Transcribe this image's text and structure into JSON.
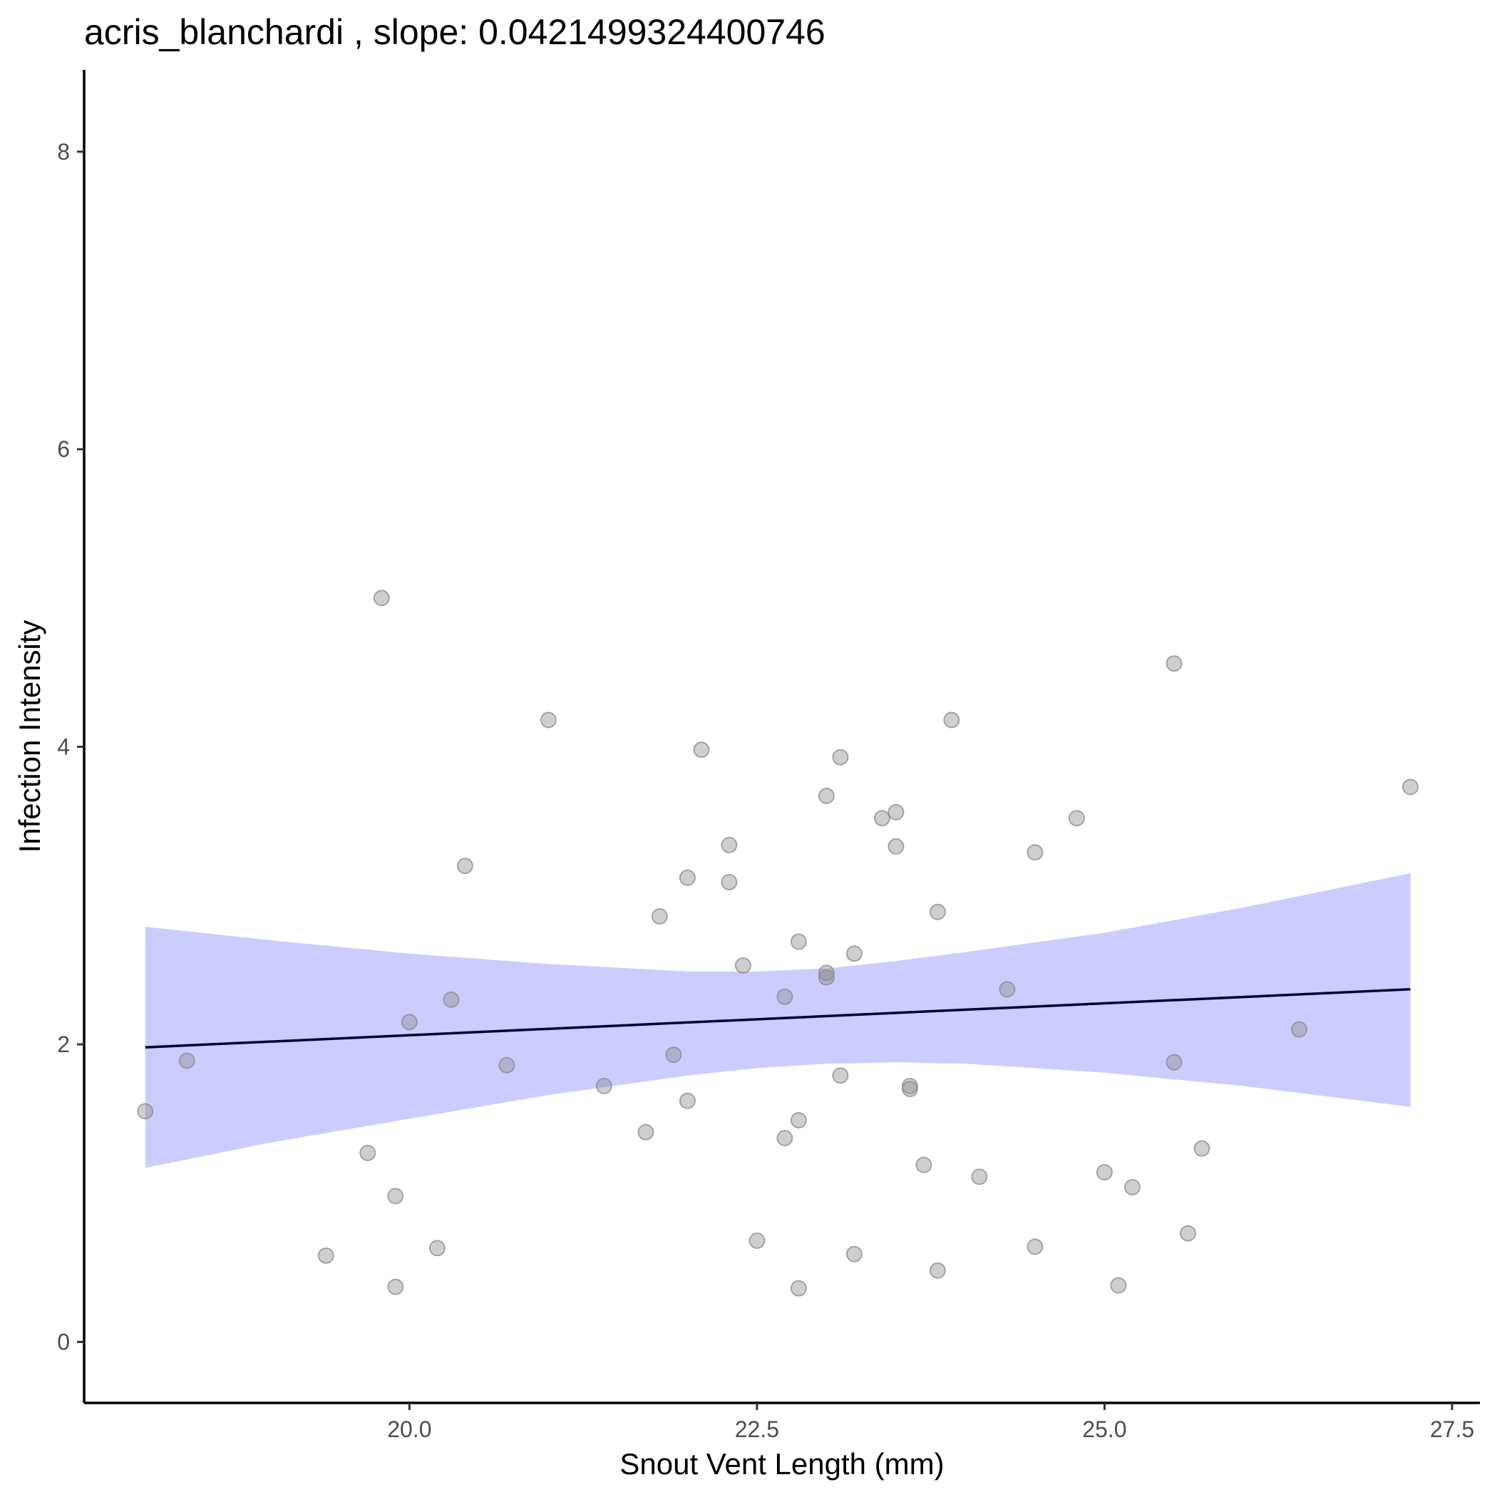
{
  "chart_data": {
    "type": "scatter",
    "title": "acris_blanchardi , slope: 0.0421499324400746",
    "xlabel": "Snout Vent Length (mm)",
    "ylabel": "Infection Intensity",
    "xlim": [
      17.66,
      27.7
    ],
    "ylim": [
      -0.41,
      8.55
    ],
    "xticks": [
      20.0,
      22.5,
      25.0,
      27.5
    ],
    "xtick_labels": [
      "20.0",
      "22.5",
      "25.0",
      "27.5"
    ],
    "yticks": [
      0,
      2,
      4,
      6,
      8
    ],
    "ytick_labels": [
      "0",
      "2",
      "4",
      "6",
      "8"
    ],
    "grid": false,
    "legend": "none",
    "colors": {
      "points": "#8c8c8c",
      "band": "#9999ff",
      "line": "#000033",
      "axis": "#000000",
      "tick_text": "#4d4d4d"
    },
    "points": [
      {
        "x": 18.1,
        "y": 1.55
      },
      {
        "x": 18.4,
        "y": 1.89
      },
      {
        "x": 19.4,
        "y": 0.58
      },
      {
        "x": 19.7,
        "y": 1.27
      },
      {
        "x": 19.8,
        "y": 5.0
      },
      {
        "x": 19.9,
        "y": 0.98
      },
      {
        "x": 19.9,
        "y": 0.37
      },
      {
        "x": 20.0,
        "y": 2.15
      },
      {
        "x": 20.2,
        "y": 0.63
      },
      {
        "x": 20.3,
        "y": 2.3
      },
      {
        "x": 20.4,
        "y": 3.2
      },
      {
        "x": 20.7,
        "y": 1.86
      },
      {
        "x": 21.0,
        "y": 4.18
      },
      {
        "x": 21.4,
        "y": 1.72
      },
      {
        "x": 21.7,
        "y": 1.41
      },
      {
        "x": 21.8,
        "y": 2.86
      },
      {
        "x": 21.9,
        "y": 1.93
      },
      {
        "x": 22.0,
        "y": 3.12
      },
      {
        "x": 22.0,
        "y": 1.62
      },
      {
        "x": 22.1,
        "y": 3.98
      },
      {
        "x": 22.3,
        "y": 3.34
      },
      {
        "x": 22.3,
        "y": 3.09
      },
      {
        "x": 22.4,
        "y": 2.53
      },
      {
        "x": 22.5,
        "y": 0.68
      },
      {
        "x": 22.7,
        "y": 2.32
      },
      {
        "x": 22.7,
        "y": 1.37
      },
      {
        "x": 22.8,
        "y": 2.69
      },
      {
        "x": 22.8,
        "y": 1.49
      },
      {
        "x": 22.8,
        "y": 0.36
      },
      {
        "x": 23.0,
        "y": 3.67
      },
      {
        "x": 23.0,
        "y": 2.48
      },
      {
        "x": 23.0,
        "y": 2.45
      },
      {
        "x": 23.1,
        "y": 3.93
      },
      {
        "x": 23.1,
        "y": 1.79
      },
      {
        "x": 23.2,
        "y": 2.61
      },
      {
        "x": 23.2,
        "y": 0.59
      },
      {
        "x": 23.4,
        "y": 3.52
      },
      {
        "x": 23.5,
        "y": 3.56
      },
      {
        "x": 23.5,
        "y": 3.33
      },
      {
        "x": 23.6,
        "y": 1.72
      },
      {
        "x": 23.6,
        "y": 1.7
      },
      {
        "x": 23.7,
        "y": 1.19
      },
      {
        "x": 23.8,
        "y": 2.89
      },
      {
        "x": 23.8,
        "y": 0.48
      },
      {
        "x": 23.9,
        "y": 4.18
      },
      {
        "x": 24.1,
        "y": 1.11
      },
      {
        "x": 24.3,
        "y": 2.37
      },
      {
        "x": 24.5,
        "y": 3.29
      },
      {
        "x": 24.5,
        "y": 0.64
      },
      {
        "x": 24.8,
        "y": 3.52
      },
      {
        "x": 25.0,
        "y": 1.14
      },
      {
        "x": 25.1,
        "y": 0.38
      },
      {
        "x": 25.2,
        "y": 1.04
      },
      {
        "x": 25.5,
        "y": 4.56
      },
      {
        "x": 25.5,
        "y": 1.88
      },
      {
        "x": 25.6,
        "y": 0.73
      },
      {
        "x": 25.7,
        "y": 1.3
      },
      {
        "x": 26.4,
        "y": 2.1
      },
      {
        "x": 27.2,
        "y": 3.73
      }
    ],
    "fit_line": {
      "x": [
        18.1,
        27.2
      ],
      "y": [
        1.98,
        2.37
      ]
    },
    "confidence_band": {
      "x": [
        18.1,
        19.0,
        20.0,
        21.0,
        22.0,
        22.5,
        23.0,
        23.5,
        24.0,
        25.0,
        26.0,
        27.2
      ],
      "upper": [
        2.79,
        2.7,
        2.61,
        2.54,
        2.49,
        2.49,
        2.51,
        2.56,
        2.62,
        2.75,
        2.92,
        3.15
      ],
      "lower": [
        1.17,
        1.34,
        1.5,
        1.66,
        1.79,
        1.84,
        1.87,
        1.88,
        1.87,
        1.81,
        1.72,
        1.58
      ]
    }
  }
}
